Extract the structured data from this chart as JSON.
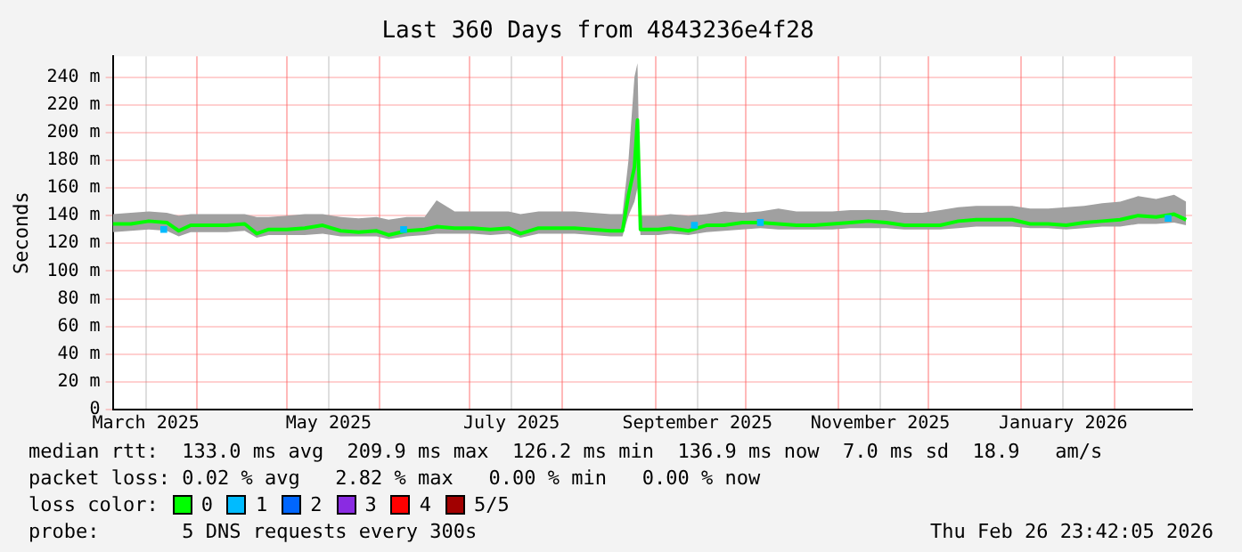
{
  "chart_data": {
    "type": "line",
    "title": "Last 360 Days from 4843236e4f28",
    "ylabel": "Seconds",
    "legend_title": "loss color:",
    "legend": "bottom",
    "marker": "none",
    "grid": true,
    "xlim": [
      "2025-03-04",
      "2026-02-27"
    ],
    "ylim": [
      0,
      255
    ],
    "xticks": [
      {
        "value": "2025-03-15",
        "label": "March 2025"
      },
      {
        "value": "2025-04-01",
        "label": null
      },
      {
        "value": "2025-05-01",
        "label": null
      },
      {
        "value": "2025-05-15",
        "label": "May 2025"
      },
      {
        "value": "2025-06-01",
        "label": null
      },
      {
        "value": "2025-07-01",
        "label": null
      },
      {
        "value": "2025-07-15",
        "label": "July 2025"
      },
      {
        "value": "2025-08-01",
        "label": null
      },
      {
        "value": "2025-09-01",
        "label": null
      },
      {
        "value": "2025-09-15",
        "label": "September 2025"
      },
      {
        "value": "2025-10-01",
        "label": null
      },
      {
        "value": "2025-11-01",
        "label": null
      },
      {
        "value": "2025-11-15",
        "label": "November 2025"
      },
      {
        "value": "2025-12-01",
        "label": null
      },
      {
        "value": "2026-01-01",
        "label": null
      },
      {
        "value": "2026-01-15",
        "label": "January 2026"
      },
      {
        "value": "2026-02-01",
        "label": null
      }
    ],
    "yticks": [
      0,
      {
        "value": 20,
        "label": "20 m"
      },
      {
        "value": 40,
        "label": "40 m"
      },
      {
        "value": 60,
        "label": "60 m"
      },
      {
        "value": 80,
        "label": "80 m"
      },
      {
        "value": 100,
        "label": "100 m"
      },
      {
        "value": 120,
        "label": "120 m"
      },
      {
        "value": 140,
        "label": "140 m"
      },
      {
        "value": 160,
        "label": "160 m"
      },
      {
        "value": 180,
        "label": "180 m"
      },
      {
        "value": 200,
        "label": "200 m"
      },
      {
        "value": 220,
        "label": "220 m"
      },
      {
        "value": 240,
        "label": "240 m"
      }
    ],
    "x": [
      "2025-03-04",
      "2025-03-10",
      "2025-03-16",
      "2025-03-22",
      "2025-03-26",
      "2025-03-30",
      "2025-04-05",
      "2025-04-11",
      "2025-04-17",
      "2025-04-21",
      "2025-04-25",
      "2025-05-01",
      "2025-05-07",
      "2025-05-13",
      "2025-05-19",
      "2025-05-25",
      "2025-05-31",
      "2025-06-04",
      "2025-06-10",
      "2025-06-16",
      "2025-06-20",
      "2025-06-26",
      "2025-07-02",
      "2025-07-08",
      "2025-07-14",
      "2025-07-18",
      "2025-07-24",
      "2025-07-30",
      "2025-08-05",
      "2025-08-11",
      "2025-08-17",
      "2025-08-21",
      "2025-08-23",
      "2025-08-25",
      "2025-08-26",
      "2025-08-27",
      "2025-09-02",
      "2025-09-06",
      "2025-09-12",
      "2025-09-18",
      "2025-09-24",
      "2025-09-30",
      "2025-10-06",
      "2025-10-12",
      "2025-10-18",
      "2025-10-24",
      "2025-10-30",
      "2025-11-05",
      "2025-11-11",
      "2025-11-17",
      "2025-11-23",
      "2025-11-29",
      "2025-12-05",
      "2025-12-11",
      "2025-12-17",
      "2025-12-23",
      "2025-12-29",
      "2026-01-04",
      "2026-01-10",
      "2026-01-16",
      "2026-01-22",
      "2026-01-28",
      "2026-02-03",
      "2026-02-09",
      "2026-02-15",
      "2026-02-21",
      "2026-02-25"
    ],
    "series": [
      {
        "name": "0",
        "color": "#00ff00",
        "values": [
          134,
          134,
          136,
          135,
          129,
          133,
          133,
          133,
          134,
          127,
          130,
          130,
          131,
          133,
          129,
          128,
          129,
          126,
          129,
          130,
          132,
          131,
          131,
          130,
          131,
          127,
          131,
          131,
          131,
          130,
          129,
          129,
          155,
          175,
          209,
          130,
          130,
          131,
          129,
          133,
          133,
          135,
          135,
          134,
          133,
          133,
          134,
          135,
          136,
          135,
          133,
          133,
          133,
          136,
          137,
          137,
          137,
          134,
          134,
          133,
          135,
          136,
          137,
          140,
          139,
          141,
          137
        ],
        "lower": [
          128,
          129,
          130,
          129,
          125,
          128,
          128,
          128,
          129,
          124,
          126,
          126,
          126,
          127,
          125,
          125,
          125,
          123,
          125,
          126,
          127,
          127,
          127,
          126,
          127,
          124,
          127,
          127,
          127,
          126,
          125,
          125,
          140,
          150,
          160,
          126,
          126,
          127,
          126,
          128,
          129,
          130,
          131,
          130,
          130,
          130,
          130,
          131,
          131,
          131,
          130,
          130,
          130,
          131,
          132,
          132,
          132,
          131,
          131,
          130,
          131,
          132,
          132,
          134,
          134,
          135,
          133
        ],
        "upper": [
          141,
          142,
          143,
          142,
          140,
          141,
          141,
          141,
          141,
          139,
          139,
          140,
          141,
          141,
          139,
          138,
          139,
          137,
          139,
          139,
          151,
          143,
          143,
          143,
          143,
          141,
          143,
          143,
          143,
          142,
          141,
          141,
          180,
          240,
          250,
          140,
          140,
          141,
          140,
          141,
          143,
          142,
          143,
          145,
          143,
          143,
          143,
          144,
          144,
          144,
          142,
          142,
          144,
          146,
          147,
          147,
          147,
          145,
          145,
          146,
          147,
          149,
          150,
          154,
          152,
          155,
          150
        ]
      },
      {
        "name": "1",
        "color": "#00bbff",
        "type": "scatter",
        "marker": "square",
        "x": [
          "2025-03-21",
          "2025-06-09",
          "2025-09-14",
          "2025-10-06",
          "2026-02-19"
        ],
        "values": [
          130,
          130,
          133,
          135,
          138
        ]
      },
      {
        "name": "2",
        "color": "#0066ff",
        "values": [
          null,
          null,
          null,
          null,
          null,
          null,
          null,
          null,
          null,
          null,
          null,
          null,
          null,
          null,
          null,
          null,
          null,
          null,
          null,
          null,
          null,
          null,
          null,
          null,
          null,
          null,
          null,
          null,
          null,
          null,
          null,
          null,
          null,
          null,
          null,
          null,
          null,
          null,
          null,
          null,
          null,
          null,
          null,
          null,
          null,
          null,
          null,
          null,
          null,
          null,
          null,
          null,
          null,
          null,
          null,
          null,
          null,
          null,
          null,
          null,
          null,
          null,
          null,
          null,
          null,
          null,
          null
        ]
      },
      {
        "name": "3",
        "color": "#8a2be2",
        "values": [
          null,
          null,
          null,
          null,
          null,
          null,
          null,
          null,
          null,
          null,
          null,
          null,
          null,
          null,
          null,
          null,
          null,
          null,
          null,
          null,
          null,
          null,
          null,
          null,
          null,
          null,
          null,
          null,
          null,
          null,
          null,
          null,
          null,
          null,
          null,
          null,
          null,
          null,
          null,
          null,
          null,
          null,
          null,
          null,
          null,
          null,
          null,
          null,
          null,
          null,
          null,
          null,
          null,
          null,
          null,
          null,
          null,
          null,
          null,
          null,
          null,
          null,
          null,
          null,
          null,
          null,
          null
        ]
      },
      {
        "name": "4",
        "color": "#ff0000",
        "values": [
          null,
          null,
          null,
          null,
          null,
          null,
          null,
          null,
          null,
          null,
          null,
          null,
          null,
          null,
          null,
          null,
          null,
          null,
          null,
          null,
          null,
          null,
          null,
          null,
          null,
          null,
          null,
          null,
          null,
          null,
          null,
          null,
          null,
          null,
          null,
          null,
          null,
          null,
          null,
          null,
          null,
          null,
          null,
          null,
          null,
          null,
          null,
          null,
          null,
          null,
          null,
          null,
          null,
          null,
          null,
          null,
          null,
          null,
          null,
          null,
          null,
          null,
          null,
          null,
          null,
          null,
          null
        ]
      },
      {
        "name": "5/5",
        "color": "#a10000",
        "values": [
          null,
          null,
          null,
          null,
          null,
          null,
          null,
          null,
          null,
          null,
          null,
          null,
          null,
          null,
          null,
          null,
          null,
          null,
          null,
          null,
          null,
          null,
          null,
          null,
          null,
          null,
          null,
          null,
          null,
          null,
          null,
          null,
          null,
          null,
          null,
          null,
          null,
          null,
          null,
          null,
          null,
          null,
          null,
          null,
          null,
          null,
          null,
          null,
          null,
          null,
          null,
          null,
          null,
          null,
          null,
          null,
          null,
          null,
          null,
          null,
          null,
          null,
          null,
          null,
          null,
          null,
          null
        ]
      }
    ],
    "annotations": [
      "median rtt:  133.0 ms avg  209.9 ms max  126.2 ms min  136.9 ms now  7.0 ms sd  18.9   am/s",
      "packet loss: 0.02 % avg   2.82 % max   0.00 % min   0.00 % now",
      "probe:       5 DNS requests every 300s",
      "Thu Feb 26 23:42:05 2026"
    ]
  }
}
